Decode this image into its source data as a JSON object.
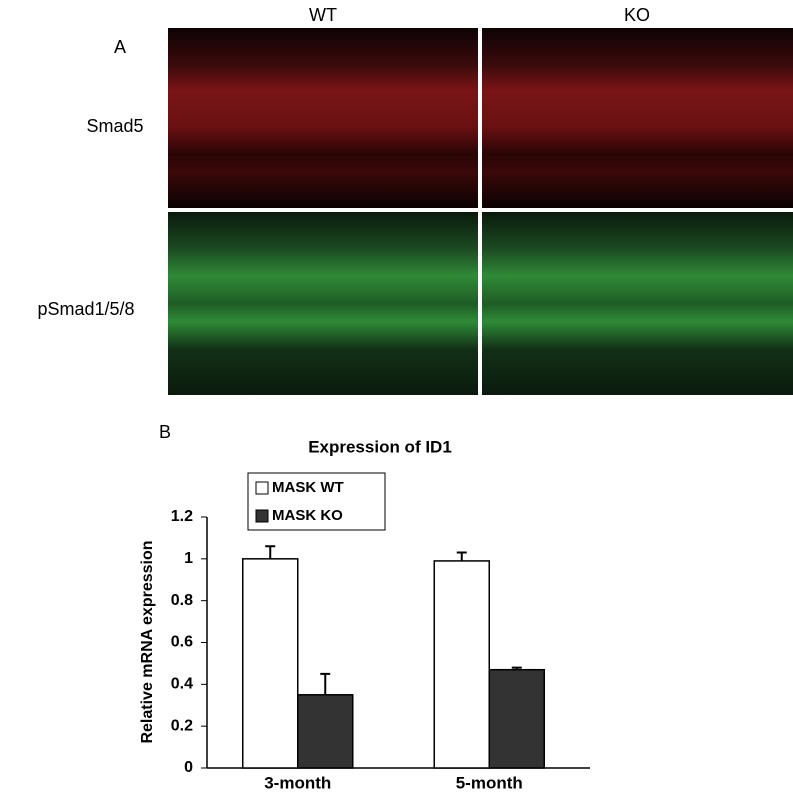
{
  "panel_a": {
    "label": "A",
    "columns": [
      "WT",
      "KO"
    ],
    "rows": [
      "Smad5",
      "pSmad1/5/8"
    ]
  },
  "chart_data": {
    "type": "bar",
    "panel_label": "B",
    "title": "Expression of ID1",
    "y_label": "Relative mRNA expression",
    "categories": [
      "3-month",
      "5-month"
    ],
    "series": [
      {
        "name": "MASK WT",
        "color": "#ffffff",
        "values": [
          1.0,
          0.99
        ],
        "errors": [
          0.06,
          0.04
        ]
      },
      {
        "name": "MASK KO",
        "color": "#333333",
        "values": [
          0.35,
          0.47
        ],
        "errors": [
          0.1,
          0.01
        ]
      }
    ],
    "ylim": [
      0,
      1.2
    ],
    "yticks": [
      0,
      0.2,
      0.4,
      0.6,
      0.8,
      1,
      1.2
    ],
    "grid": false,
    "legend": "upper left"
  }
}
